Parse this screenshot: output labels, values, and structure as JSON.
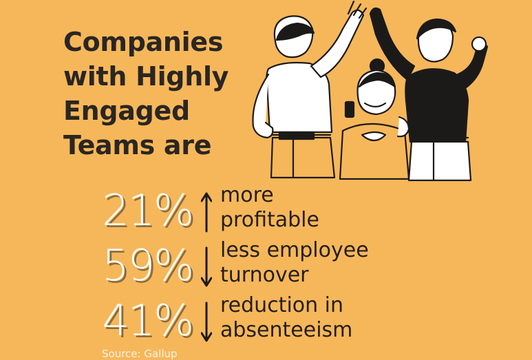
{
  "title": {
    "lines": [
      "Companies",
      "with Highly",
      "Engaged",
      "Teams are"
    ]
  },
  "stats": [
    {
      "value": "21%",
      "direction": "up",
      "line1": "more",
      "line2": "profitable"
    },
    {
      "value": "59%",
      "direction": "down",
      "line1": "less employee",
      "line2": "turnover"
    },
    {
      "value": "41%",
      "direction": "down",
      "line1": "reduction in",
      "line2": "absenteeism"
    }
  ],
  "source": "Source: Gallup",
  "colors": {
    "background": "#f6b75a",
    "text_dark": "#2a2622",
    "number_fill": "#ffffff",
    "number_shadow": "#8a6a3e"
  },
  "illustration": "three-coworkers-high-five-celebrating"
}
